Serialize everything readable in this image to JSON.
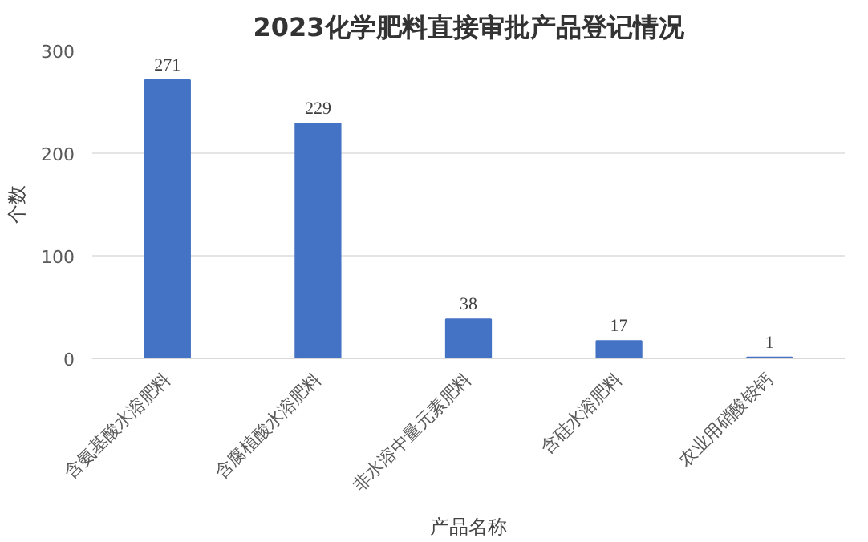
{
  "chart_data": {
    "type": "bar",
    "title": "2023化学肥料直接审批产品登记情况",
    "xlabel": "产品名称",
    "ylabel": "个数",
    "categories": [
      "含氨基酸水溶肥料",
      "含腐植酸水溶肥料",
      "非水溶中量元素肥料",
      "含硅水溶肥料",
      "农业用硝酸铵钙"
    ],
    "values": [
      271,
      229,
      38,
      17,
      1
    ],
    "color": "#4472c4",
    "ylim": [
      0,
      300
    ],
    "yticks": [
      0,
      100,
      200,
      300
    ],
    "grid": "y",
    "data_labels": true
  }
}
